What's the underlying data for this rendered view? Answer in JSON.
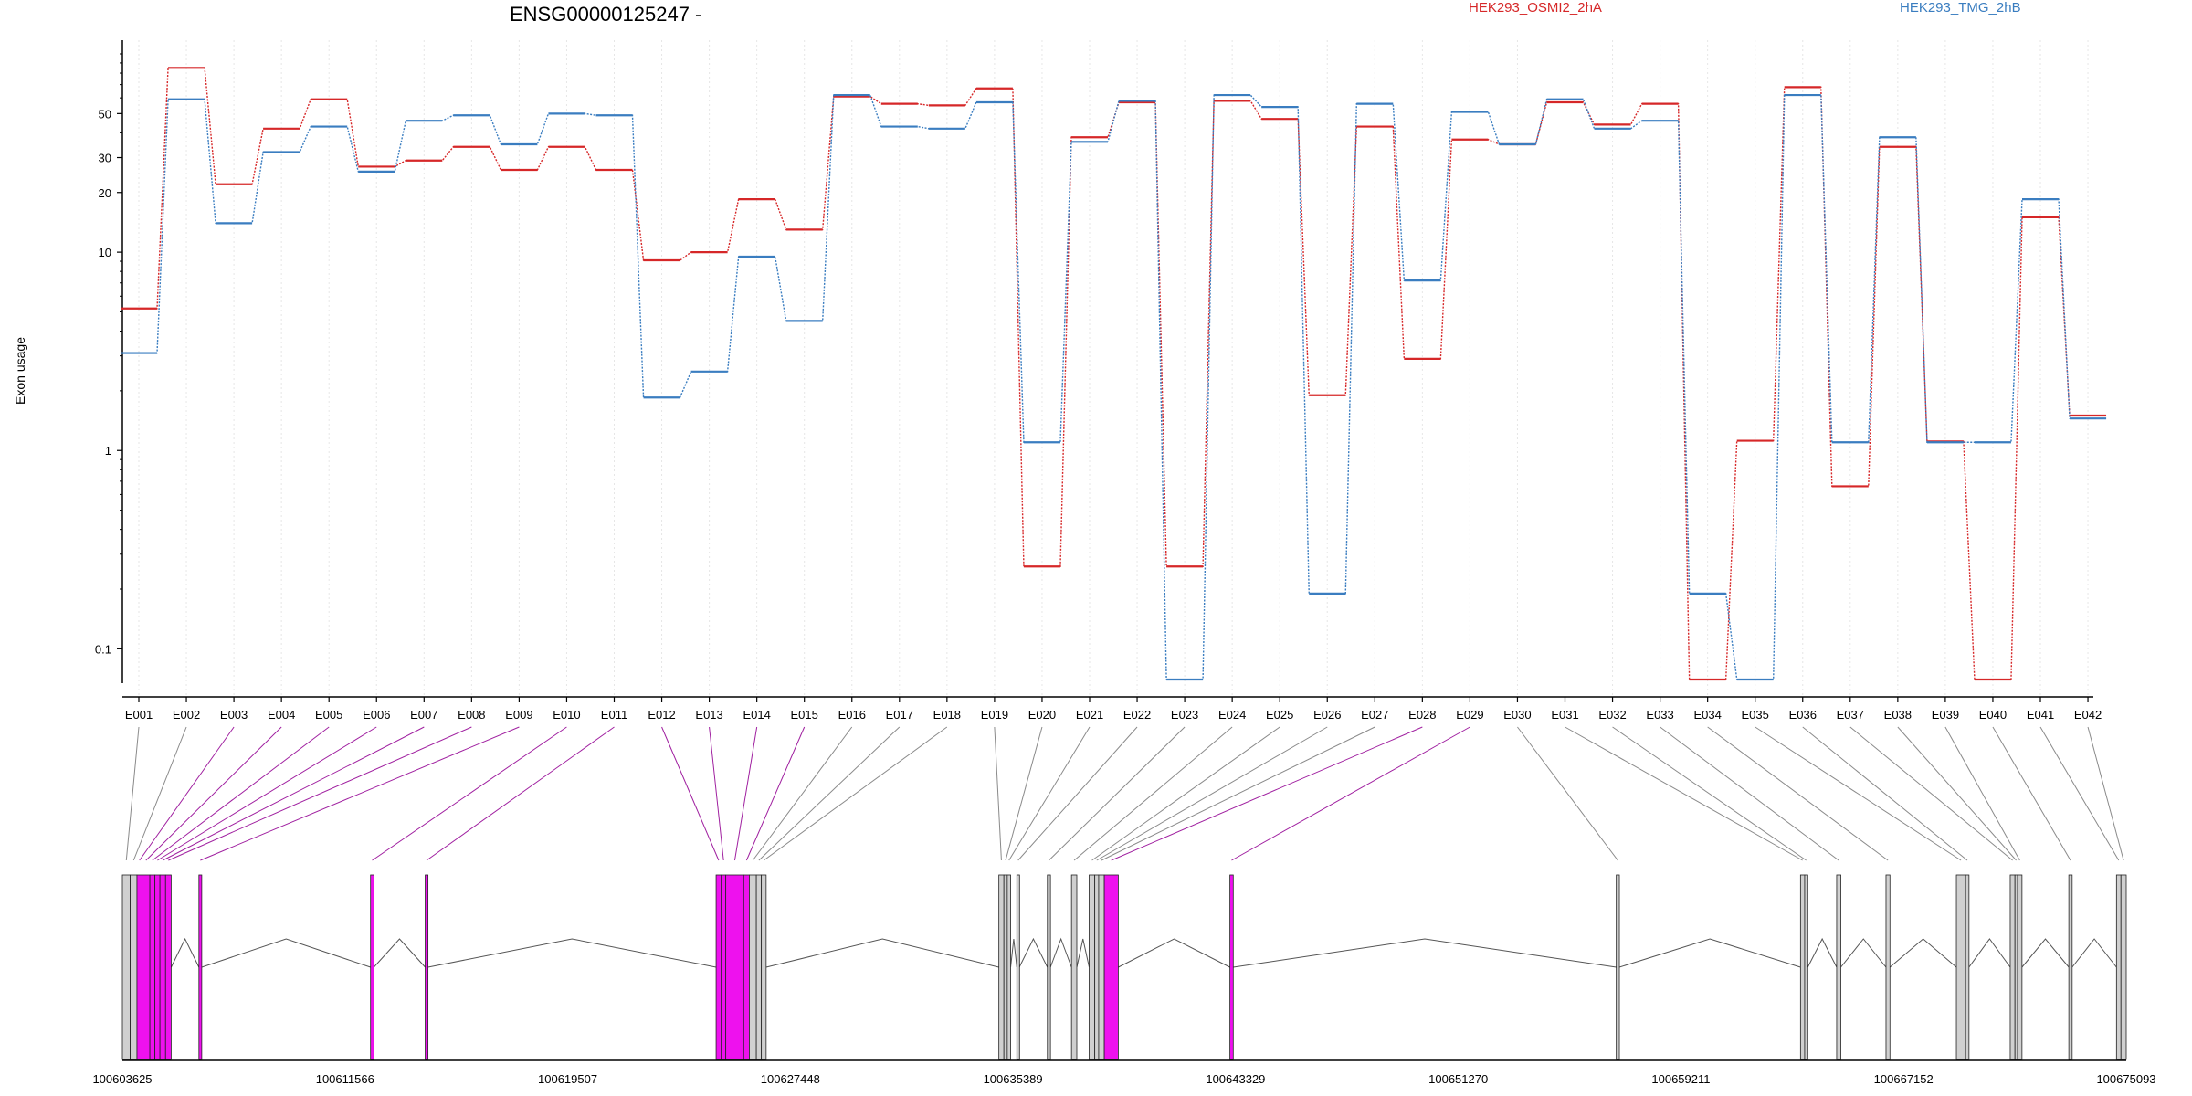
{
  "chart_data": {
    "type": "line",
    "title": "ENSG00000125247 -",
    "ylabel": "Exon usage",
    "yscale": "log",
    "ylim": [
      0.07,
      110
    ],
    "yticks": [
      0.1,
      1,
      10,
      20,
      30,
      50
    ],
    "ytick_labels": [
      "0.1",
      "1",
      "10",
      "20",
      "30",
      "50"
    ],
    "grid": "vertical",
    "legend_position": "top-right",
    "categories": [
      "E001",
      "E002",
      "E003",
      "E004",
      "E005",
      "E006",
      "E007",
      "E008",
      "E009",
      "E010",
      "E011",
      "E012",
      "E013",
      "E014",
      "E015",
      "E016",
      "E017",
      "E018",
      "E019",
      "E020",
      "E021",
      "E022",
      "E023",
      "E024",
      "E025",
      "E026",
      "E027",
      "E028",
      "E029",
      "E030",
      "E031",
      "E032",
      "E033",
      "E034",
      "E035",
      "E036",
      "E037",
      "E038",
      "E039",
      "E040",
      "E041",
      "E042"
    ],
    "series": [
      {
        "name": "HEK293_OSMI2_2hA",
        "color": "#d62728",
        "values": [
          5.2,
          85,
          22,
          42,
          59,
          27,
          29,
          34,
          26,
          34,
          26,
          9.1,
          10,
          18.5,
          13,
          61,
          56,
          55,
          67,
          0.26,
          38,
          57,
          0.26,
          58,
          47,
          1.9,
          43,
          2.9,
          37,
          35,
          57,
          44,
          56,
          0.07,
          1.12,
          68,
          0.66,
          34,
          1.11,
          0.07,
          15,
          1.5
        ]
      },
      {
        "name": "HEK293_TMG_2hB",
        "color": "#3a7dc0",
        "values": [
          3.1,
          59,
          14,
          32,
          43,
          25.5,
          46,
          49,
          35,
          50,
          49,
          1.85,
          2.5,
          9.5,
          4.5,
          62,
          43,
          42,
          57,
          1.1,
          36,
          58,
          0.07,
          62,
          54,
          0.19,
          56,
          7.2,
          51,
          35,
          59,
          42,
          46,
          0.19,
          0.07,
          62,
          1.1,
          38,
          1.1,
          1.1,
          18.5,
          1.45
        ]
      }
    ],
    "gene_model": {
      "coordinate_labels": [
        "100603625",
        "100611566",
        "100619507",
        "100627448",
        "100635389",
        "100643329",
        "100651270",
        "100659211",
        "100667152",
        "100675093"
      ],
      "coord_range": [
        100603625,
        100675093
      ],
      "exons": [
        {
          "id": "E001",
          "start": 100603625,
          "end": 100603905,
          "significant": false
        },
        {
          "id": "E002",
          "start": 100603905,
          "end": 100604145,
          "significant": false
        },
        {
          "id": "E003",
          "start": 100604145,
          "end": 100604325,
          "significant": true
        },
        {
          "id": "E004",
          "start": 100604325,
          "end": 100604605,
          "significant": true
        },
        {
          "id": "E005",
          "start": 100604605,
          "end": 100604785,
          "significant": true
        },
        {
          "id": "E006",
          "start": 100604785,
          "end": 100604965,
          "significant": true
        },
        {
          "id": "E007",
          "start": 100604965,
          "end": 100605165,
          "significant": true
        },
        {
          "id": "E008",
          "start": 100605165,
          "end": 100605365,
          "significant": true
        },
        {
          "id": "E009",
          "start": 100606355,
          "end": 100606455,
          "significant": true
        },
        {
          "id": "E010",
          "start": 100612475,
          "end": 100612595,
          "significant": true
        },
        {
          "id": "E011",
          "start": 100614425,
          "end": 100614525,
          "significant": true
        },
        {
          "id": "E012",
          "start": 100624800,
          "end": 100624985,
          "significant": true
        },
        {
          "id": "E013",
          "start": 100624985,
          "end": 100625145,
          "significant": true
        },
        {
          "id": "E014",
          "start": 100625145,
          "end": 100625785,
          "significant": true
        },
        {
          "id": "E015",
          "start": 100625785,
          "end": 100625985,
          "significant": true
        },
        {
          "id": "E016",
          "start": 100625985,
          "end": 100626235,
          "significant": false
        },
        {
          "id": "E017",
          "start": 100626235,
          "end": 100626415,
          "significant": false
        },
        {
          "id": "E018",
          "start": 100626415,
          "end": 100626585,
          "significant": false
        },
        {
          "id": "E019",
          "start": 100634885,
          "end": 100635065,
          "significant": false
        },
        {
          "id": "E020",
          "start": 100635065,
          "end": 100635185,
          "significant": false
        },
        {
          "id": "E021",
          "start": 100635185,
          "end": 100635305,
          "significant": false
        },
        {
          "id": "E022",
          "start": 100635525,
          "end": 100635615,
          "significant": false
        },
        {
          "id": "E023",
          "start": 100636615,
          "end": 100636725,
          "significant": false
        },
        {
          "id": "E024",
          "start": 100637475,
          "end": 100637665,
          "significant": false
        },
        {
          "id": "E025",
          "start": 100638105,
          "end": 100638305,
          "significant": false
        },
        {
          "id": "E026",
          "start": 100638305,
          "end": 100638445,
          "significant": false
        },
        {
          "id": "E027",
          "start": 100638445,
          "end": 100638645,
          "significant": false
        },
        {
          "id": "E028",
          "start": 100638645,
          "end": 100639145,
          "significant": true
        },
        {
          "id": "E029",
          "start": 100643125,
          "end": 100643245,
          "significant": true
        },
        {
          "id": "E030",
          "start": 100656905,
          "end": 100657015,
          "significant": false
        },
        {
          "id": "E031",
          "start": 100663475,
          "end": 100663625,
          "significant": false
        },
        {
          "id": "E032",
          "start": 100663625,
          "end": 100663735,
          "significant": false
        },
        {
          "id": "E033",
          "start": 100664765,
          "end": 100664915,
          "significant": false
        },
        {
          "id": "E034",
          "start": 100666525,
          "end": 100666665,
          "significant": false
        },
        {
          "id": "E035",
          "start": 100669035,
          "end": 100669365,
          "significant": false
        },
        {
          "id": "E036",
          "start": 100669365,
          "end": 100669485,
          "significant": false
        },
        {
          "id": "E037",
          "start": 100670955,
          "end": 100671125,
          "significant": false
        },
        {
          "id": "E038",
          "start": 100671125,
          "end": 100671215,
          "significant": false
        },
        {
          "id": "E039",
          "start": 100671215,
          "end": 100671375,
          "significant": false
        },
        {
          "id": "E040",
          "start": 100673045,
          "end": 100673165,
          "significant": false
        },
        {
          "id": "E041",
          "start": 100674745,
          "end": 100674905,
          "significant": false
        },
        {
          "id": "E042",
          "start": 100674905,
          "end": 100675093,
          "significant": false
        }
      ]
    }
  },
  "colors": {
    "significant": "#ee11ee",
    "significant_line": "#a020a0",
    "nonsignificant_fill": "#d0d0d0",
    "connector_gray": "#8a8a8a"
  }
}
